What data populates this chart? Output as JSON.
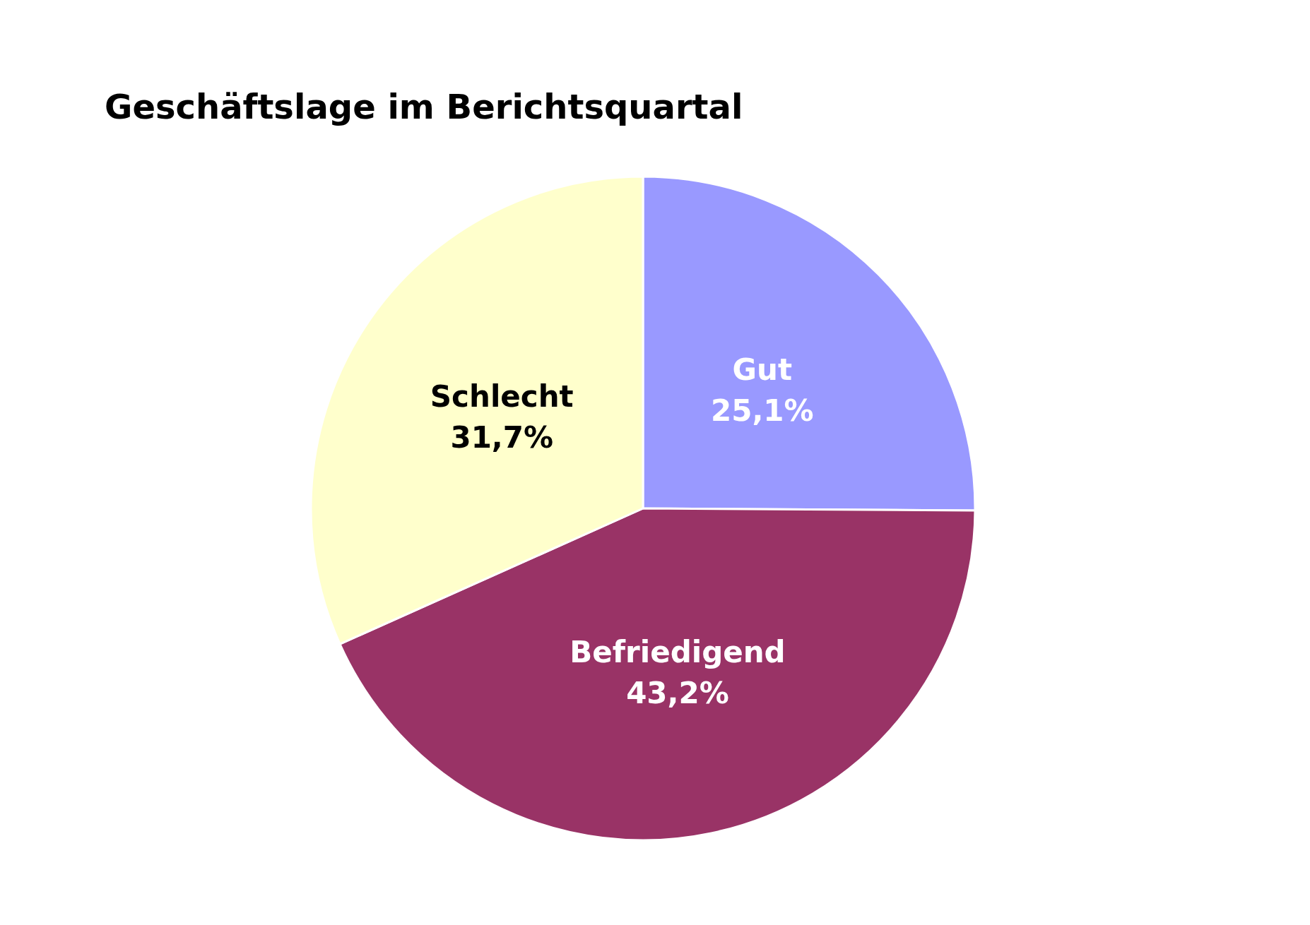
{
  "chart_data": {
    "type": "pie",
    "title": "Geschäftslage im Berichtsquartal",
    "categories": [
      "Gut",
      "Befriedigend",
      "Schlecht"
    ],
    "values": [
      25.1,
      43.2,
      31.7
    ],
    "colors": [
      "#9999ff",
      "#993366",
      "#ffffcc"
    ],
    "value_labels": [
      "25,1%",
      "43,2%",
      "31,7%"
    ],
    "legend": false
  }
}
